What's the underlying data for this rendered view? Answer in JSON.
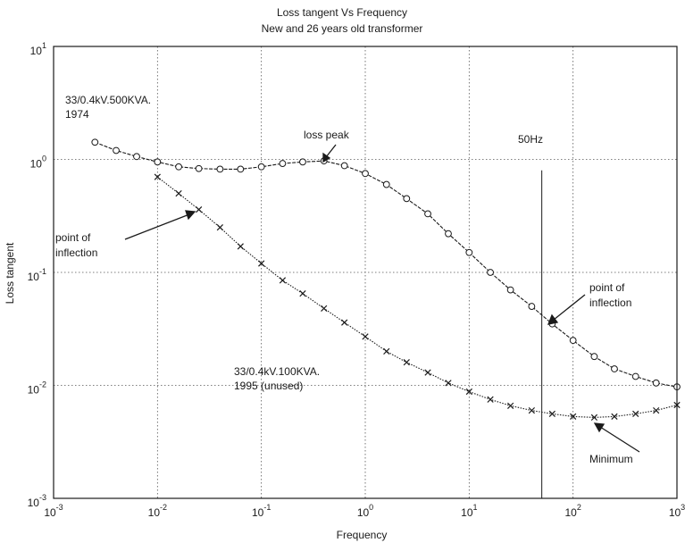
{
  "chart_data": {
    "type": "line",
    "title": "Loss tangent Vs Frequency",
    "subtitle": "New and 26 years old transformer",
    "xlabel": "Frequency",
    "ylabel": "Loss tangent",
    "x_scale": "log",
    "y_scale": "log",
    "xlim": [
      0.001,
      1000
    ],
    "ylim": [
      0.001,
      10
    ],
    "grid": true,
    "x_ticks": [
      {
        "value": 0.001,
        "base": "10",
        "exp": "-3"
      },
      {
        "value": 0.01,
        "base": "10",
        "exp": "-2"
      },
      {
        "value": 0.1,
        "base": "10",
        "exp": "-1"
      },
      {
        "value": 1,
        "base": "10",
        "exp": "0"
      },
      {
        "value": 10,
        "base": "10",
        "exp": "1"
      },
      {
        "value": 100,
        "base": "10",
        "exp": "2"
      },
      {
        "value": 1000,
        "base": "10",
        "exp": "3"
      }
    ],
    "y_ticks": [
      {
        "value": 0.001,
        "base": "10",
        "exp": "-3"
      },
      {
        "value": 0.01,
        "base": "10",
        "exp": "-2"
      },
      {
        "value": 0.1,
        "base": "10",
        "exp": "-1"
      },
      {
        "value": 1,
        "base": "10",
        "exp": "0"
      },
      {
        "value": 10,
        "base": "10",
        "exp": "1"
      }
    ],
    "series": [
      {
        "name": "33/0.4kV.500KVA. 1974",
        "marker": "circle",
        "x": [
          0.0025,
          0.004,
          0.0063,
          0.01,
          0.016,
          0.025,
          0.04,
          0.063,
          0.1,
          0.16,
          0.25,
          0.4,
          0.63,
          1,
          1.6,
          2.5,
          4,
          6.3,
          10,
          16,
          25,
          40,
          63,
          100,
          160,
          250,
          400,
          630,
          1000
        ],
        "y": [
          1.42,
          1.2,
          1.06,
          0.95,
          0.86,
          0.83,
          0.82,
          0.82,
          0.86,
          0.92,
          0.95,
          0.97,
          0.88,
          0.75,
          0.6,
          0.45,
          0.33,
          0.22,
          0.15,
          0.1,
          0.07,
          0.05,
          0.035,
          0.025,
          0.018,
          0.014,
          0.012,
          0.0105,
          0.0097
        ]
      },
      {
        "name": "33/0.4kV.100KVA. 1995 (unused)",
        "marker": "x",
        "x": [
          0.01,
          0.016,
          0.025,
          0.04,
          0.063,
          0.1,
          0.16,
          0.25,
          0.4,
          0.63,
          1,
          1.6,
          2.5,
          4,
          6.3,
          10,
          16,
          25,
          40,
          63,
          100,
          160,
          250,
          400,
          630,
          1000
        ],
        "y": [
          0.7,
          0.5,
          0.36,
          0.25,
          0.17,
          0.12,
          0.085,
          0.065,
          0.048,
          0.036,
          0.027,
          0.02,
          0.016,
          0.013,
          0.0105,
          0.0088,
          0.0075,
          0.0066,
          0.006,
          0.0056,
          0.0053,
          0.0052,
          0.0053,
          0.0056,
          0.006,
          0.0067
        ]
      }
    ],
    "reference_line": {
      "x": 50,
      "label": "50Hz"
    },
    "annotations": {
      "series1_label_line1": "33/0.4kV.500KVA.",
      "series1_label_line2": "1974",
      "series2_label_line1": "33/0.4kV.100KVA.",
      "series2_label_line2": "1995 (unused)",
      "loss_peak": "loss peak",
      "inflection_left_line1": "point of",
      "inflection_left_line2": "inflection",
      "inflection_right_line1": "point of",
      "inflection_right_line2": "inflection",
      "minimum": "Minimum"
    }
  }
}
